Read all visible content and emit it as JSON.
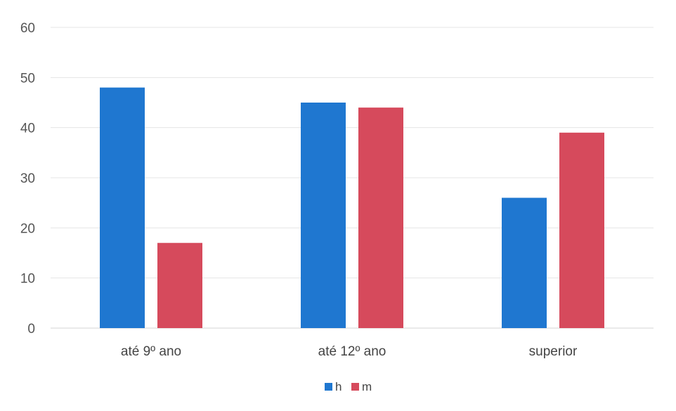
{
  "chart_data": {
    "type": "bar",
    "title": "",
    "xlabel": "",
    "ylabel": "",
    "categories": [
      "até 9º ano",
      "até 12º ano",
      "superior"
    ],
    "series": [
      {
        "name": "h",
        "values": [
          48,
          45,
          26
        ],
        "color": "#1f77d0"
      },
      {
        "name": "m",
        "values": [
          17,
          44,
          39
        ],
        "color": "#d64a5c"
      }
    ],
    "ylim": [
      0,
      60
    ],
    "yticks": [
      "0",
      "10",
      "20",
      "30",
      "40",
      "50",
      "60"
    ],
    "grid": true,
    "legend_position": "bottom"
  }
}
